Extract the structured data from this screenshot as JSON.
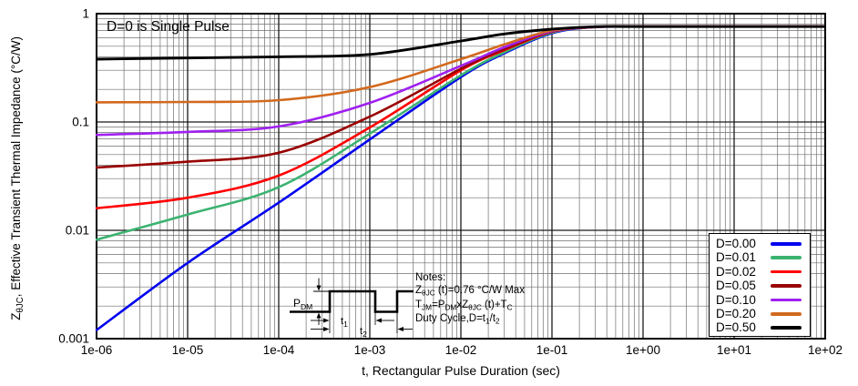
{
  "chart_data": {
    "type": "line",
    "x_scale": "log",
    "y_scale": "log",
    "xlim": [
      1e-06,
      100
    ],
    "ylim": [
      0.001,
      1
    ],
    "grid": "major+minor log grid on",
    "legend_position": "bottom-right-inside",
    "x_label": "t, Rectangular Pulse Duration (sec)",
    "y_label_tokens": [
      {
        "t": "Z"
      },
      {
        "s": "θJC"
      },
      {
        "t": ", Effective Transient Thermal Impedance (°C/W)"
      }
    ],
    "annotation": "D=0 is Single Pulse",
    "x_ticks": [
      {
        "v": 1e-06,
        "label": "1e-06"
      },
      {
        "v": 1e-05,
        "label": "1e-05"
      },
      {
        "v": 0.0001,
        "label": "1e-04"
      },
      {
        "v": 0.001,
        "label": "1e-03"
      },
      {
        "v": 0.01,
        "label": "1e-02"
      },
      {
        "v": 0.1,
        "label": "1e-01"
      },
      {
        "v": 1,
        "label": "1e+00"
      },
      {
        "v": 10,
        "label": "1e+01"
      },
      {
        "v": 100,
        "label": "1e+02"
      }
    ],
    "y_ticks": [
      {
        "v": 1,
        "label": "1"
      },
      {
        "v": 0.1,
        "label": "0.1"
      },
      {
        "v": 0.01,
        "label": "0.01"
      },
      {
        "v": 0.001,
        "label": "0.001"
      }
    ],
    "x": [
      1e-06,
      1e-05,
      0.0001,
      0.001,
      0.01,
      0.03,
      0.1,
      0.3,
      1,
      10,
      100
    ],
    "series": [
      {
        "name": "D=0.00",
        "color": "#0000ee",
        "values": [
          0.0012,
          0.005,
          0.018,
          0.069,
          0.26,
          0.43,
          0.66,
          0.753,
          0.76,
          0.76,
          0.76
        ]
      },
      {
        "name": "D=0.01",
        "color": "#3cb371",
        "values": [
          0.0082,
          0.014,
          0.025,
          0.078,
          0.27,
          0.44,
          0.67,
          0.753,
          0.76,
          0.76,
          0.76
        ]
      },
      {
        "name": "D=0.02",
        "color": "#ff0000",
        "values": [
          0.016,
          0.02,
          0.032,
          0.089,
          0.3,
          0.46,
          0.68,
          0.754,
          0.76,
          0.76,
          0.76
        ]
      },
      {
        "name": "D=0.05",
        "color": "#990000",
        "values": [
          0.038,
          0.043,
          0.052,
          0.112,
          0.31,
          0.47,
          0.685,
          0.754,
          0.76,
          0.76,
          0.76
        ]
      },
      {
        "name": "D=0.10",
        "color": "#a020f0",
        "values": [
          0.076,
          0.081,
          0.091,
          0.15,
          0.33,
          0.49,
          0.69,
          0.754,
          0.76,
          0.76,
          0.76
        ]
      },
      {
        "name": "D=0.20",
        "color": "#d2691e",
        "values": [
          0.152,
          0.153,
          0.159,
          0.21,
          0.38,
          0.52,
          0.7,
          0.755,
          0.76,
          0.76,
          0.76
        ]
      },
      {
        "name": "D=0.50",
        "color": "#000000",
        "values": [
          0.38,
          0.39,
          0.4,
          0.42,
          0.56,
          0.65,
          0.72,
          0.758,
          0.76,
          0.76,
          0.76
        ]
      }
    ],
    "notes_lines": [
      [
        {
          "t": "Notes:"
        }
      ],
      [
        {
          "t": "Z"
        },
        {
          "s": "θJC"
        },
        {
          "t": " (t)=0.76 °C/W Max"
        }
      ],
      [
        {
          "t": "T"
        },
        {
          "s": "JM"
        },
        {
          "t": "=P"
        },
        {
          "s": "DM"
        },
        {
          "t": "xZ"
        },
        {
          "s": "θJC"
        },
        {
          "t": " (t)+T"
        },
        {
          "s": "C"
        }
      ],
      [
        {
          "t": "Duty Cycle,D=t"
        },
        {
          "s": "1"
        },
        {
          "t": "/t"
        },
        {
          "s": "2"
        }
      ]
    ],
    "waveform": {
      "p_label": [
        {
          "t": "P"
        },
        {
          "s": "DM"
        }
      ],
      "t1_label": [
        {
          "t": "t"
        },
        {
          "s": "1"
        }
      ],
      "t2_label": [
        {
          "t": "t"
        },
        {
          "s": "2"
        }
      ]
    },
    "colors": {
      "background": "#ffffff",
      "frame": "#000000",
      "grid_major": "#1a1a1a",
      "grid_minor": "#6e6e6e",
      "text": "#000000"
    }
  }
}
